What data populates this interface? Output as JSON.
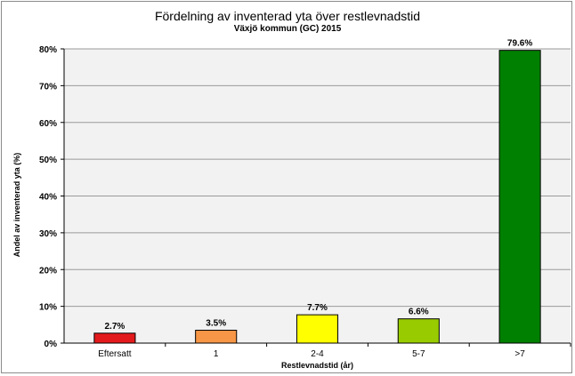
{
  "colors": {
    "plot_bg": "#f2f2f2",
    "grid": "#9a9a9a",
    "axis": "#000000",
    "bar_border": "#000000"
  },
  "chart_data": {
    "type": "bar",
    "title": "Fördelning av inventerad yta över restlevnadstid",
    "subtitle": "Växjö kommun (GC) 2015",
    "xlabel": "Restlevnadstid (år)",
    "ylabel": "Andel av inventerad yta (%)",
    "ylim": [
      0,
      80
    ],
    "yticks": [
      0,
      10,
      20,
      30,
      40,
      50,
      60,
      70,
      80
    ],
    "ytick_labels": [
      "0%",
      "10%",
      "20%",
      "30%",
      "40%",
      "50%",
      "60%",
      "70%",
      "80%"
    ],
    "grid": true,
    "legend": "none",
    "categories": [
      "Eftersatt",
      "1",
      "2-4",
      "5-7",
      ">7"
    ],
    "values": [
      2.7,
      3.5,
      7.7,
      6.6,
      79.6
    ],
    "data_labels": [
      "2.7%",
      "3.5%",
      "7.7%",
      "6.6%",
      "79.6%"
    ],
    "bar_colors": [
      "#e31a1c",
      "#f79646",
      "#ffff00",
      "#99cc00",
      "#008000"
    ]
  }
}
